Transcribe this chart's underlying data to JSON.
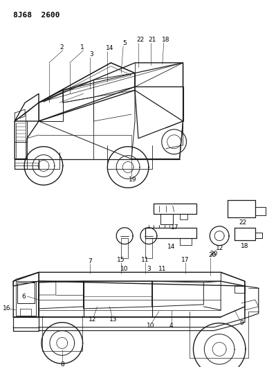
{
  "title": "8J68  2600",
  "background_color": "#ffffff",
  "text_color": "#000000",
  "figsize": [
    3.99,
    5.33
  ],
  "dpi": 100,
  "title_fontsize": 8.0,
  "label_fontsize": 6.5,
  "line_color": "#1a1a1a",
  "line_width": 0.7
}
